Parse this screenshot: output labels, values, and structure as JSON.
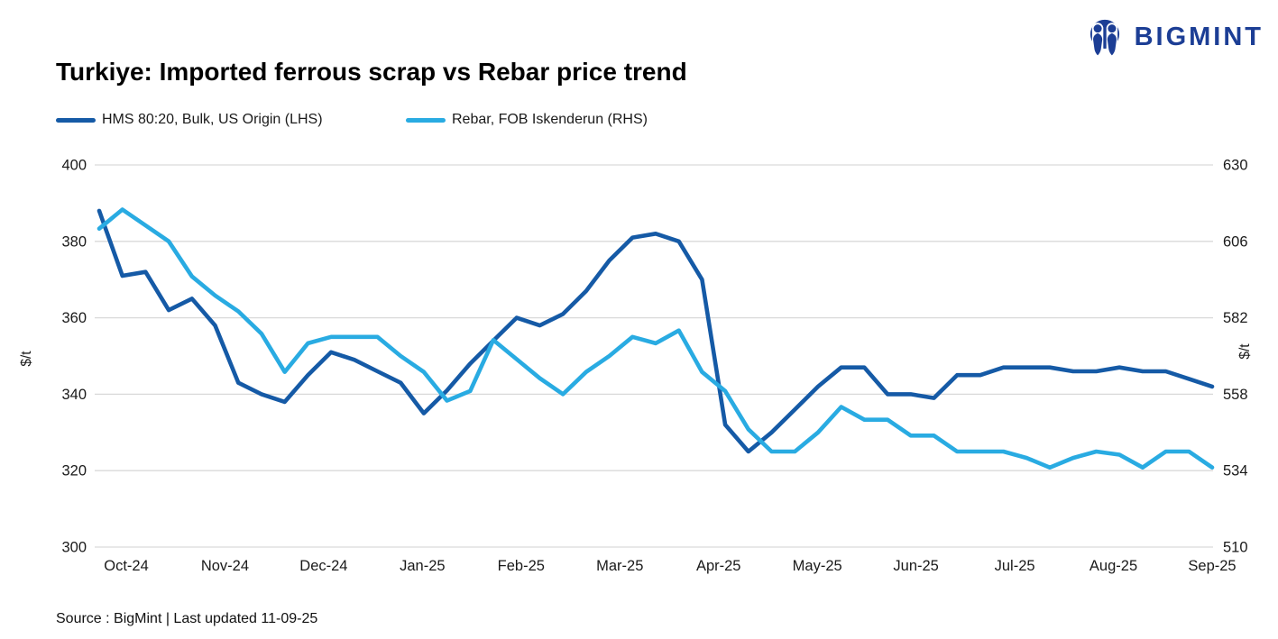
{
  "branding": {
    "name": "BIGMINT",
    "color": "#1C3E95"
  },
  "title": "Turkiye: Imported ferrous scrap vs Rebar price trend",
  "source": "Source : BigMint | Last updated 11-09-25",
  "colors": {
    "hms_line": "#155AA6",
    "rebar_line": "#29ABE2",
    "gridline": "#D9D9D9",
    "axis_text": "#1a1a1a"
  },
  "chart_data": {
    "type": "line",
    "title": "Turkiye: Imported ferrous scrap vs Rebar price trend",
    "grid": "horizontal",
    "legend_position": "top-left",
    "x_labels": [
      "Oct-24",
      "Nov-24",
      "Dec-24",
      "Jan-25",
      "Feb-25",
      "Mar-25",
      "Apr-25",
      "May-25",
      "Jun-25",
      "Jul-25",
      "Aug-25",
      "Sep-25"
    ],
    "left_axis": {
      "title": "$/t",
      "min": 300,
      "max": 400,
      "ticks": [
        400,
        380,
        360,
        340,
        320,
        300
      ]
    },
    "right_axis": {
      "title": "$/t",
      "min": 510,
      "max": 630,
      "ticks": [
        630,
        606,
        582,
        558,
        534,
        510
      ]
    },
    "series": [
      {
        "name": "HMS 80:20, Bulk, US Origin (LHS)",
        "axis": "left",
        "color": "#155AA6",
        "frequency": "weekly",
        "values": [
          388,
          371,
          372,
          362,
          365,
          358,
          343,
          340,
          338,
          345,
          351,
          349,
          346,
          343,
          335,
          341,
          348,
          354,
          360,
          358,
          361,
          367,
          375,
          381,
          382,
          380,
          370,
          332,
          325,
          330,
          336,
          342,
          347,
          347,
          340,
          340,
          339,
          345,
          345,
          347,
          347,
          347,
          346,
          346,
          347,
          346,
          346,
          344,
          342
        ]
      },
      {
        "name": "Rebar, FOB Iskenderun (RHS)",
        "axis": "right",
        "color": "#29ABE2",
        "frequency": "weekly",
        "values": [
          610,
          616,
          611,
          606,
          595,
          589,
          584,
          577,
          565,
          574,
          576,
          576,
          576,
          570,
          565,
          556,
          559,
          575,
          569,
          563,
          558,
          565,
          570,
          576,
          574,
          578,
          565,
          559,
          547,
          540,
          540,
          546,
          554,
          550,
          550,
          545,
          545,
          540,
          540,
          540,
          538,
          535,
          538,
          540,
          539,
          535,
          540,
          540,
          535
        ]
      }
    ]
  }
}
